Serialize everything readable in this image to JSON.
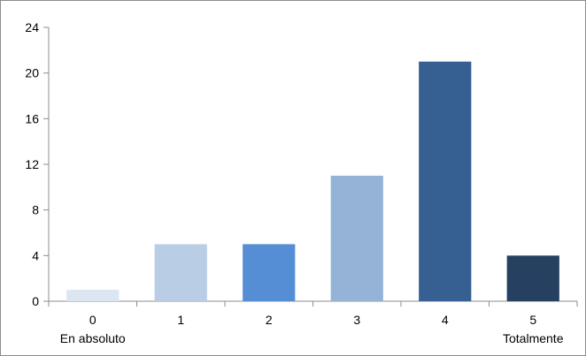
{
  "chart_data": {
    "type": "bar",
    "categories": [
      "0",
      "1",
      "2",
      "3",
      "4",
      "5"
    ],
    "category_sublabels": [
      "En absoluto",
      "",
      "",
      "",
      "",
      "Totalmente"
    ],
    "values": [
      1,
      5,
      5,
      11,
      21,
      4
    ],
    "bar_colors": [
      "#dce6f2",
      "#b9cde5",
      "#558ed5",
      "#95b3d7",
      "#366092",
      "#254061"
    ],
    "yticks": [
      0,
      4,
      8,
      12,
      16,
      20,
      24
    ],
    "ylim": [
      0,
      24
    ],
    "grid": false,
    "legend": "none",
    "title": "",
    "xlabel": "",
    "ylabel": ""
  }
}
